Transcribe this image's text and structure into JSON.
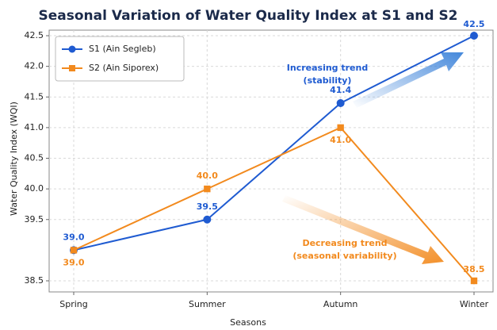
{
  "chart_data": {
    "type": "line",
    "title": "Seasonal Variation of Water Quality Index at S1 and S2",
    "x_label": "Seasons",
    "y_label": "Water Quality Index (WQI)",
    "categories": [
      "Spring",
      "Summer",
      "Autumn",
      "Winter"
    ],
    "series": [
      {
        "name": "S1 (Ain Segleb)",
        "color": "#1f5bd1",
        "marker": "circle",
        "values": [
          39.0,
          39.5,
          41.4,
          42.5
        ],
        "value_labels": [
          "39.0",
          "39.5",
          "41.4",
          "42.5"
        ]
      },
      {
        "name": "S2 (Ain Siporex)",
        "color": "#f28a1e",
        "marker": "square",
        "values": [
          39.0,
          40.0,
          41.0,
          38.5
        ],
        "value_labels": [
          "39.0",
          "40.0",
          "41.0",
          "38.5"
        ]
      }
    ],
    "ylim": [
      38.5,
      42.5
    ],
    "yticks": [
      38.5,
      39.5,
      {
        "value": 40,
        "label": "40.0"
      },
      40.5,
      {
        "value": 41,
        "label": "41.0"
      },
      41.5,
      {
        "value": 42,
        "label": "42.0"
      },
      42.5
    ],
    "grid": true,
    "legend": "upper left",
    "annotations": [
      {
        "lines": [
          "Increasing trend",
          "(stability)"
        ]
      },
      {
        "lines": [
          "Decreasing trend",
          "(seasonal variability)"
        ]
      }
    ]
  }
}
